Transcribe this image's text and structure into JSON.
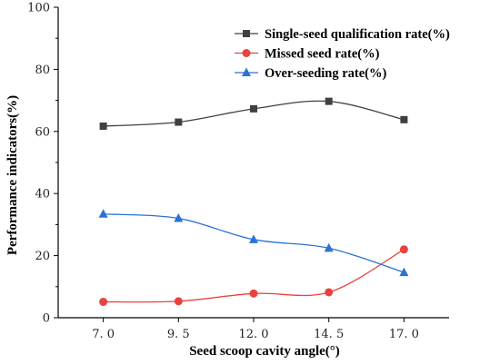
{
  "chart_data": {
    "type": "line",
    "x": [
      7.0,
      9.5,
      12.0,
      14.5,
      17.0
    ],
    "x_tick_labels": [
      "7. 0",
      "9. 5",
      "12. 0",
      "14. 5",
      "17. 0"
    ],
    "xlabel": "Seed scoop cavity angle(°)",
    "ylabel": "Performance indicators(%)",
    "ylim": [
      0,
      100
    ],
    "y_ticks": [
      0,
      20,
      40,
      60,
      80,
      100
    ],
    "smooth": true,
    "legend_position": "top-right",
    "series": [
      {
        "name": "Single-seed qualification rate(%)",
        "values": [
          61.7,
          63.0,
          67.3,
          69.7,
          63.8
        ],
        "color": "#404040",
        "marker": "square"
      },
      {
        "name": "Missed seed rate(%)",
        "values": [
          5.1,
          5.3,
          7.8,
          8.2,
          22.0
        ],
        "color": "#e8423f",
        "marker": "circle"
      },
      {
        "name": "Over-seeding rate(%)",
        "values": [
          33.4,
          32.0,
          25.2,
          22.4,
          14.6
        ],
        "color": "#2a72d4",
        "marker": "triangle"
      }
    ]
  }
}
